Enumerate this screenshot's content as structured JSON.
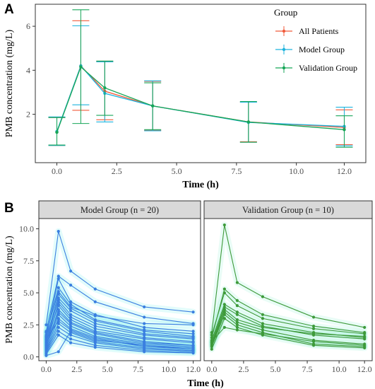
{
  "panel_letters": {
    "a": "A",
    "b": "B"
  },
  "colors": {
    "all": "#F15A3A",
    "model": "#1DB3DE",
    "validation": "#17A658",
    "spaghetti_model": "#3A7FE0",
    "spaghetti_model_halo": "#7FF0EE",
    "spaghetti_validation": "#3D9A3A",
    "spaghetti_validation_halo": "#9CF0D8",
    "strip_bg": "#D9D9D9",
    "grid": "#EBEBEB"
  },
  "chart_data": [
    {
      "type": "line",
      "panel": "A",
      "xlabel": "Time (h)",
      "ylabel": "PMB concentration (mg/L)",
      "xlim": [
        -0.9,
        12.9
      ],
      "ylim": [
        -0.2,
        7.0
      ],
      "xticks": [
        0.0,
        2.5,
        5.0,
        7.5,
        10.0,
        12.0
      ],
      "xtick_labels": [
        "0.0",
        "2.5",
        "5.0",
        "7.5",
        "10.0",
        "12.0"
      ],
      "yticks": [
        2,
        4,
        6
      ],
      "ytick_labels": [
        "2",
        "4",
        "6"
      ],
      "legend_title": "Group",
      "legend_position": "top-right",
      "x": [
        0,
        1,
        2,
        4,
        8,
        12
      ],
      "series": [
        {
          "name": "All Patients",
          "color_key": "all",
          "mean": [
            1.2,
            4.2,
            3.05,
            2.38,
            1.65,
            1.4
          ],
          "lower": [
            0.58,
            2.18,
            1.75,
            1.27,
            0.75,
            0.62
          ],
          "upper": [
            1.85,
            6.25,
            4.4,
            3.5,
            2.55,
            2.2
          ]
        },
        {
          "name": "Model Group",
          "color_key": "model",
          "mean": [
            1.22,
            4.2,
            2.95,
            2.38,
            1.63,
            1.45
          ],
          "lower": [
            0.58,
            2.43,
            1.65,
            1.25,
            0.73,
            0.57
          ],
          "upper": [
            1.88,
            6.02,
            4.38,
            3.52,
            2.55,
            2.32
          ]
        },
        {
          "name": "Validation Group",
          "color_key": "validation",
          "mean": [
            1.18,
            4.15,
            3.2,
            2.38,
            1.65,
            1.3
          ],
          "lower": [
            0.6,
            1.58,
            1.95,
            1.3,
            0.73,
            0.5
          ],
          "upper": [
            1.85,
            6.75,
            4.42,
            3.43,
            2.58,
            1.93
          ]
        }
      ]
    },
    {
      "type": "line",
      "panel": "B",
      "facets": [
        {
          "strip": "Model Group (n = 20)",
          "color_key": "spaghetti_model",
          "halo_key": "spaghetti_model_halo",
          "x": [
            0,
            1,
            2,
            4,
            8,
            12
          ],
          "subjects": [
            [
              2.5,
              9.8,
              6.7,
              5.3,
              3.9,
              3.5
            ],
            [
              2.0,
              6.3,
              5.6,
              4.3,
              3.1,
              2.6
            ],
            [
              1.5,
              6.1,
              4.3,
              3.3,
              2.3,
              2.0
            ],
            [
              1.7,
              5.4,
              4.1,
              2.9,
              2.1,
              1.8
            ],
            [
              1.9,
              5.1,
              3.9,
              3.2,
              2.6,
              2.5
            ],
            [
              1.3,
              4.9,
              3.8,
              2.8,
              2.0,
              1.6
            ],
            [
              1.1,
              4.6,
              3.6,
              2.6,
              1.8,
              1.5
            ],
            [
              1.6,
              4.4,
              3.3,
              2.4,
              1.7,
              1.4
            ],
            [
              0.9,
              4.2,
              3.1,
              2.2,
              1.5,
              1.2
            ],
            [
              1.2,
              4.0,
              2.9,
              2.0,
              1.4,
              1.1
            ],
            [
              0.7,
              3.7,
              2.7,
              1.9,
              1.2,
              0.9
            ],
            [
              1.0,
              3.5,
              2.6,
              1.8,
              1.1,
              0.9
            ],
            [
              0.8,
              3.3,
              2.4,
              1.6,
              1.0,
              0.8
            ],
            [
              0.6,
              3.0,
              2.2,
              1.5,
              0.9,
              0.7
            ],
            [
              1.4,
              2.8,
              2.1,
              1.4,
              0.8,
              0.6
            ],
            [
              0.5,
              2.6,
              1.9,
              1.2,
              0.7,
              0.5
            ],
            [
              0.4,
              2.3,
              1.7,
              1.1,
              0.6,
              0.45
            ],
            [
              0.3,
              2.0,
              1.4,
              0.9,
              0.5,
              0.35
            ],
            [
              0.2,
              1.7,
              1.1,
              0.75,
              0.4,
              0.3
            ],
            [
              0.1,
              0.4,
              2.0,
              1.3,
              0.9,
              0.6
            ]
          ]
        },
        {
          "strip": "Validation Group (n = 10)",
          "color_key": "spaghetti_validation",
          "halo_key": "spaghetti_validation_halo",
          "x": [
            0,
            1,
            2,
            4,
            8,
            12
          ],
          "subjects": [
            [
              1.9,
              10.3,
              5.8,
              4.7,
              3.1,
              2.3
            ],
            [
              1.5,
              5.3,
              4.4,
              3.3,
              2.4,
              1.9
            ],
            [
              1.7,
              5.0,
              4.0,
              3.0,
              2.2,
              1.8
            ],
            [
              1.3,
              4.1,
              3.5,
              2.6,
              1.9,
              1.5
            ],
            [
              1.1,
              3.9,
              3.3,
              2.4,
              1.7,
              1.4
            ],
            [
              1.0,
              3.7,
              2.9,
              2.3,
              1.8,
              1.6
            ],
            [
              0.9,
              3.5,
              2.7,
              2.1,
              1.3,
              1.0
            ],
            [
              0.8,
              3.3,
              2.5,
              1.9,
              1.0,
              0.8
            ],
            [
              0.6,
              3.0,
              2.3,
              1.7,
              0.9,
              0.7
            ],
            [
              1.2,
              2.3,
              2.1,
              1.8,
              1.2,
              0.9
            ]
          ]
        }
      ],
      "xlabel": "Time (h)",
      "ylabel": "PMB concentration (mg/L)",
      "xlim": [
        -0.6,
        12.6
      ],
      "ylim": [
        -0.3,
        10.8
      ],
      "xticks": [
        0.0,
        2.5,
        5.0,
        7.5,
        10.0,
        12.0
      ],
      "xtick_labels": [
        "0.0",
        "2.5",
        "5.0",
        "7.5",
        "10.0",
        "12.0"
      ],
      "yticks": [
        0.0,
        2.5,
        5.0,
        7.5,
        10.0
      ],
      "ytick_labels": [
        "0.0",
        "2.5",
        "5.0",
        "7.5",
        "10.0"
      ]
    }
  ]
}
